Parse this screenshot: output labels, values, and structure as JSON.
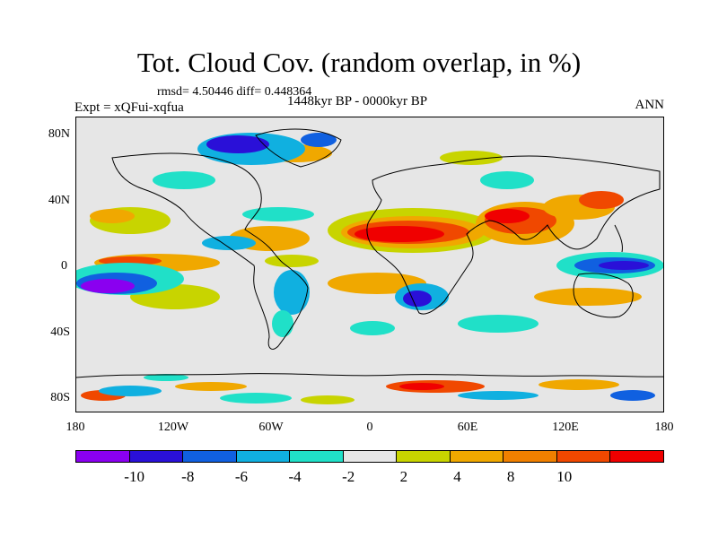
{
  "title": "Tot. Cloud Cov. (random overlap, in %)",
  "stats": "rmsd= 4.50446 diff= 0.448364",
  "experiment": "Expt = xQFui-xqfua",
  "period": "1448kyr BP - 0000kyr BP",
  "season": "ANN",
  "lat_ticks": [
    "80N",
    "40N",
    "0",
    "40S",
    "80S"
  ],
  "lon_ticks": [
    "180",
    "120W",
    "60W",
    "0",
    "60E",
    "120E",
    "180"
  ],
  "colorbar": {
    "colors": [
      "#8a00f0",
      "#2a10d8",
      "#1060e0",
      "#10b0e0",
      "#20e0c8",
      "#e6e6e6",
      "#c8d400",
      "#f0a800",
      "#f08000",
      "#f04800",
      "#f00000"
    ],
    "labels": [
      "-10",
      "-8",
      "-6",
      "-4",
      "-2",
      "2",
      "4",
      "8",
      "10"
    ]
  }
}
